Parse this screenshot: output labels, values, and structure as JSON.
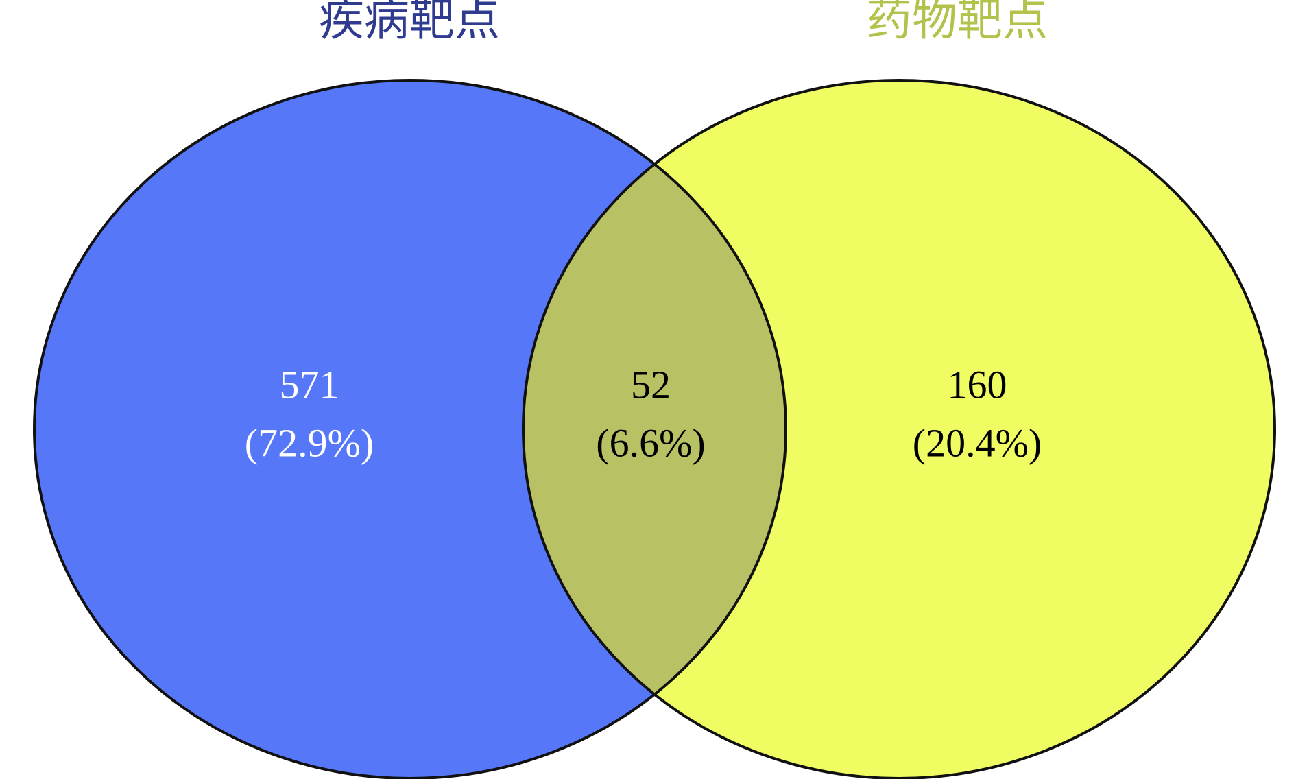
{
  "chart_data": {
    "type": "venn",
    "sets": [
      {
        "name": "疾病靶点",
        "color": "#5577f8",
        "title_color": "#2f3b8f"
      },
      {
        "name": "药物靶点",
        "color": "#f0fd62",
        "title_color": "#b4c24c"
      }
    ],
    "overlap_color": "#b8c265",
    "values": [
      571,
      52,
      160
    ],
    "percents": [
      72.9,
      6.6,
      20.4
    ],
    "percent_labels": [
      "(72.9%)",
      "(6.6%)",
      "(20.4%)"
    ]
  }
}
